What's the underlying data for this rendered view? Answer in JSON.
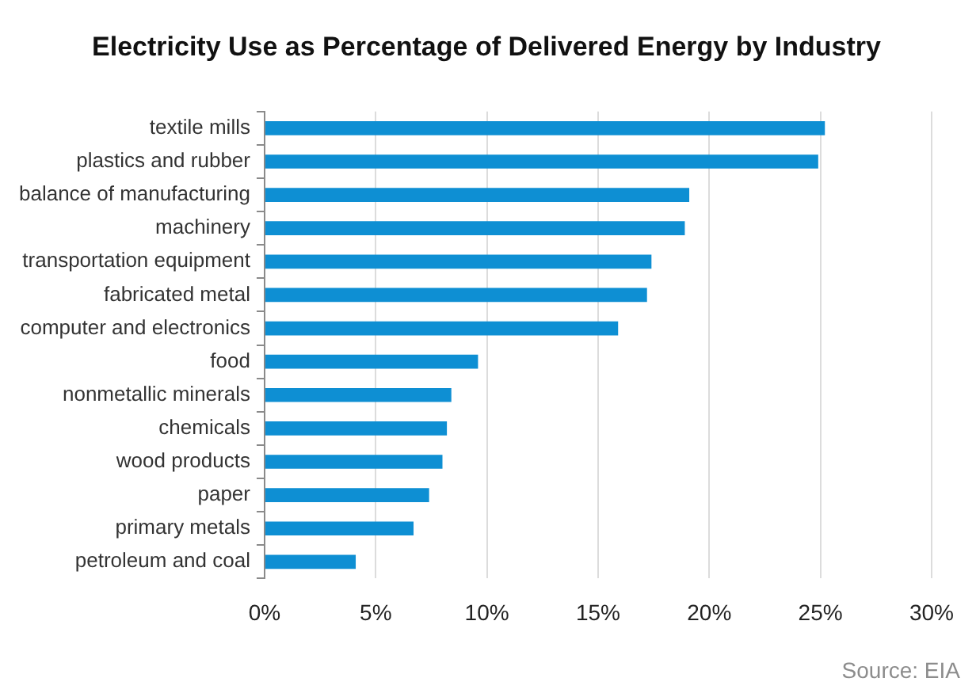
{
  "chart_data": {
    "type": "bar",
    "orientation": "horizontal",
    "title": "Electricity Use as Percentage of Delivered Energy by Industry",
    "categories": [
      "textile mills",
      "plastics and rubber",
      "balance of manufacturing",
      "machinery",
      "transportation equipment",
      "fabricated metal",
      "computer and electronics",
      "food",
      "nonmetallic minerals",
      "chemicals",
      "wood products",
      "paper",
      "primary metals",
      "petroleum and coal"
    ],
    "values": [
      25.2,
      24.9,
      19.1,
      18.9,
      17.4,
      17.2,
      15.9,
      9.6,
      8.4,
      8.2,
      8.0,
      7.4,
      6.7,
      4.1
    ],
    "color": "#0e8fd3",
    "xlim": [
      0,
      30
    ],
    "xticks": [
      {
        "value": 0,
        "label": "0%"
      },
      {
        "value": 5,
        "label": "5%"
      },
      {
        "value": 10,
        "label": "10%"
      },
      {
        "value": 15,
        "label": "15%"
      },
      {
        "value": 20,
        "label": "20%"
      },
      {
        "value": 25,
        "label": "25%"
      },
      {
        "value": 30,
        "label": "30%"
      }
    ],
    "grid": "x",
    "annotations": [
      "Source: EIA"
    ]
  }
}
